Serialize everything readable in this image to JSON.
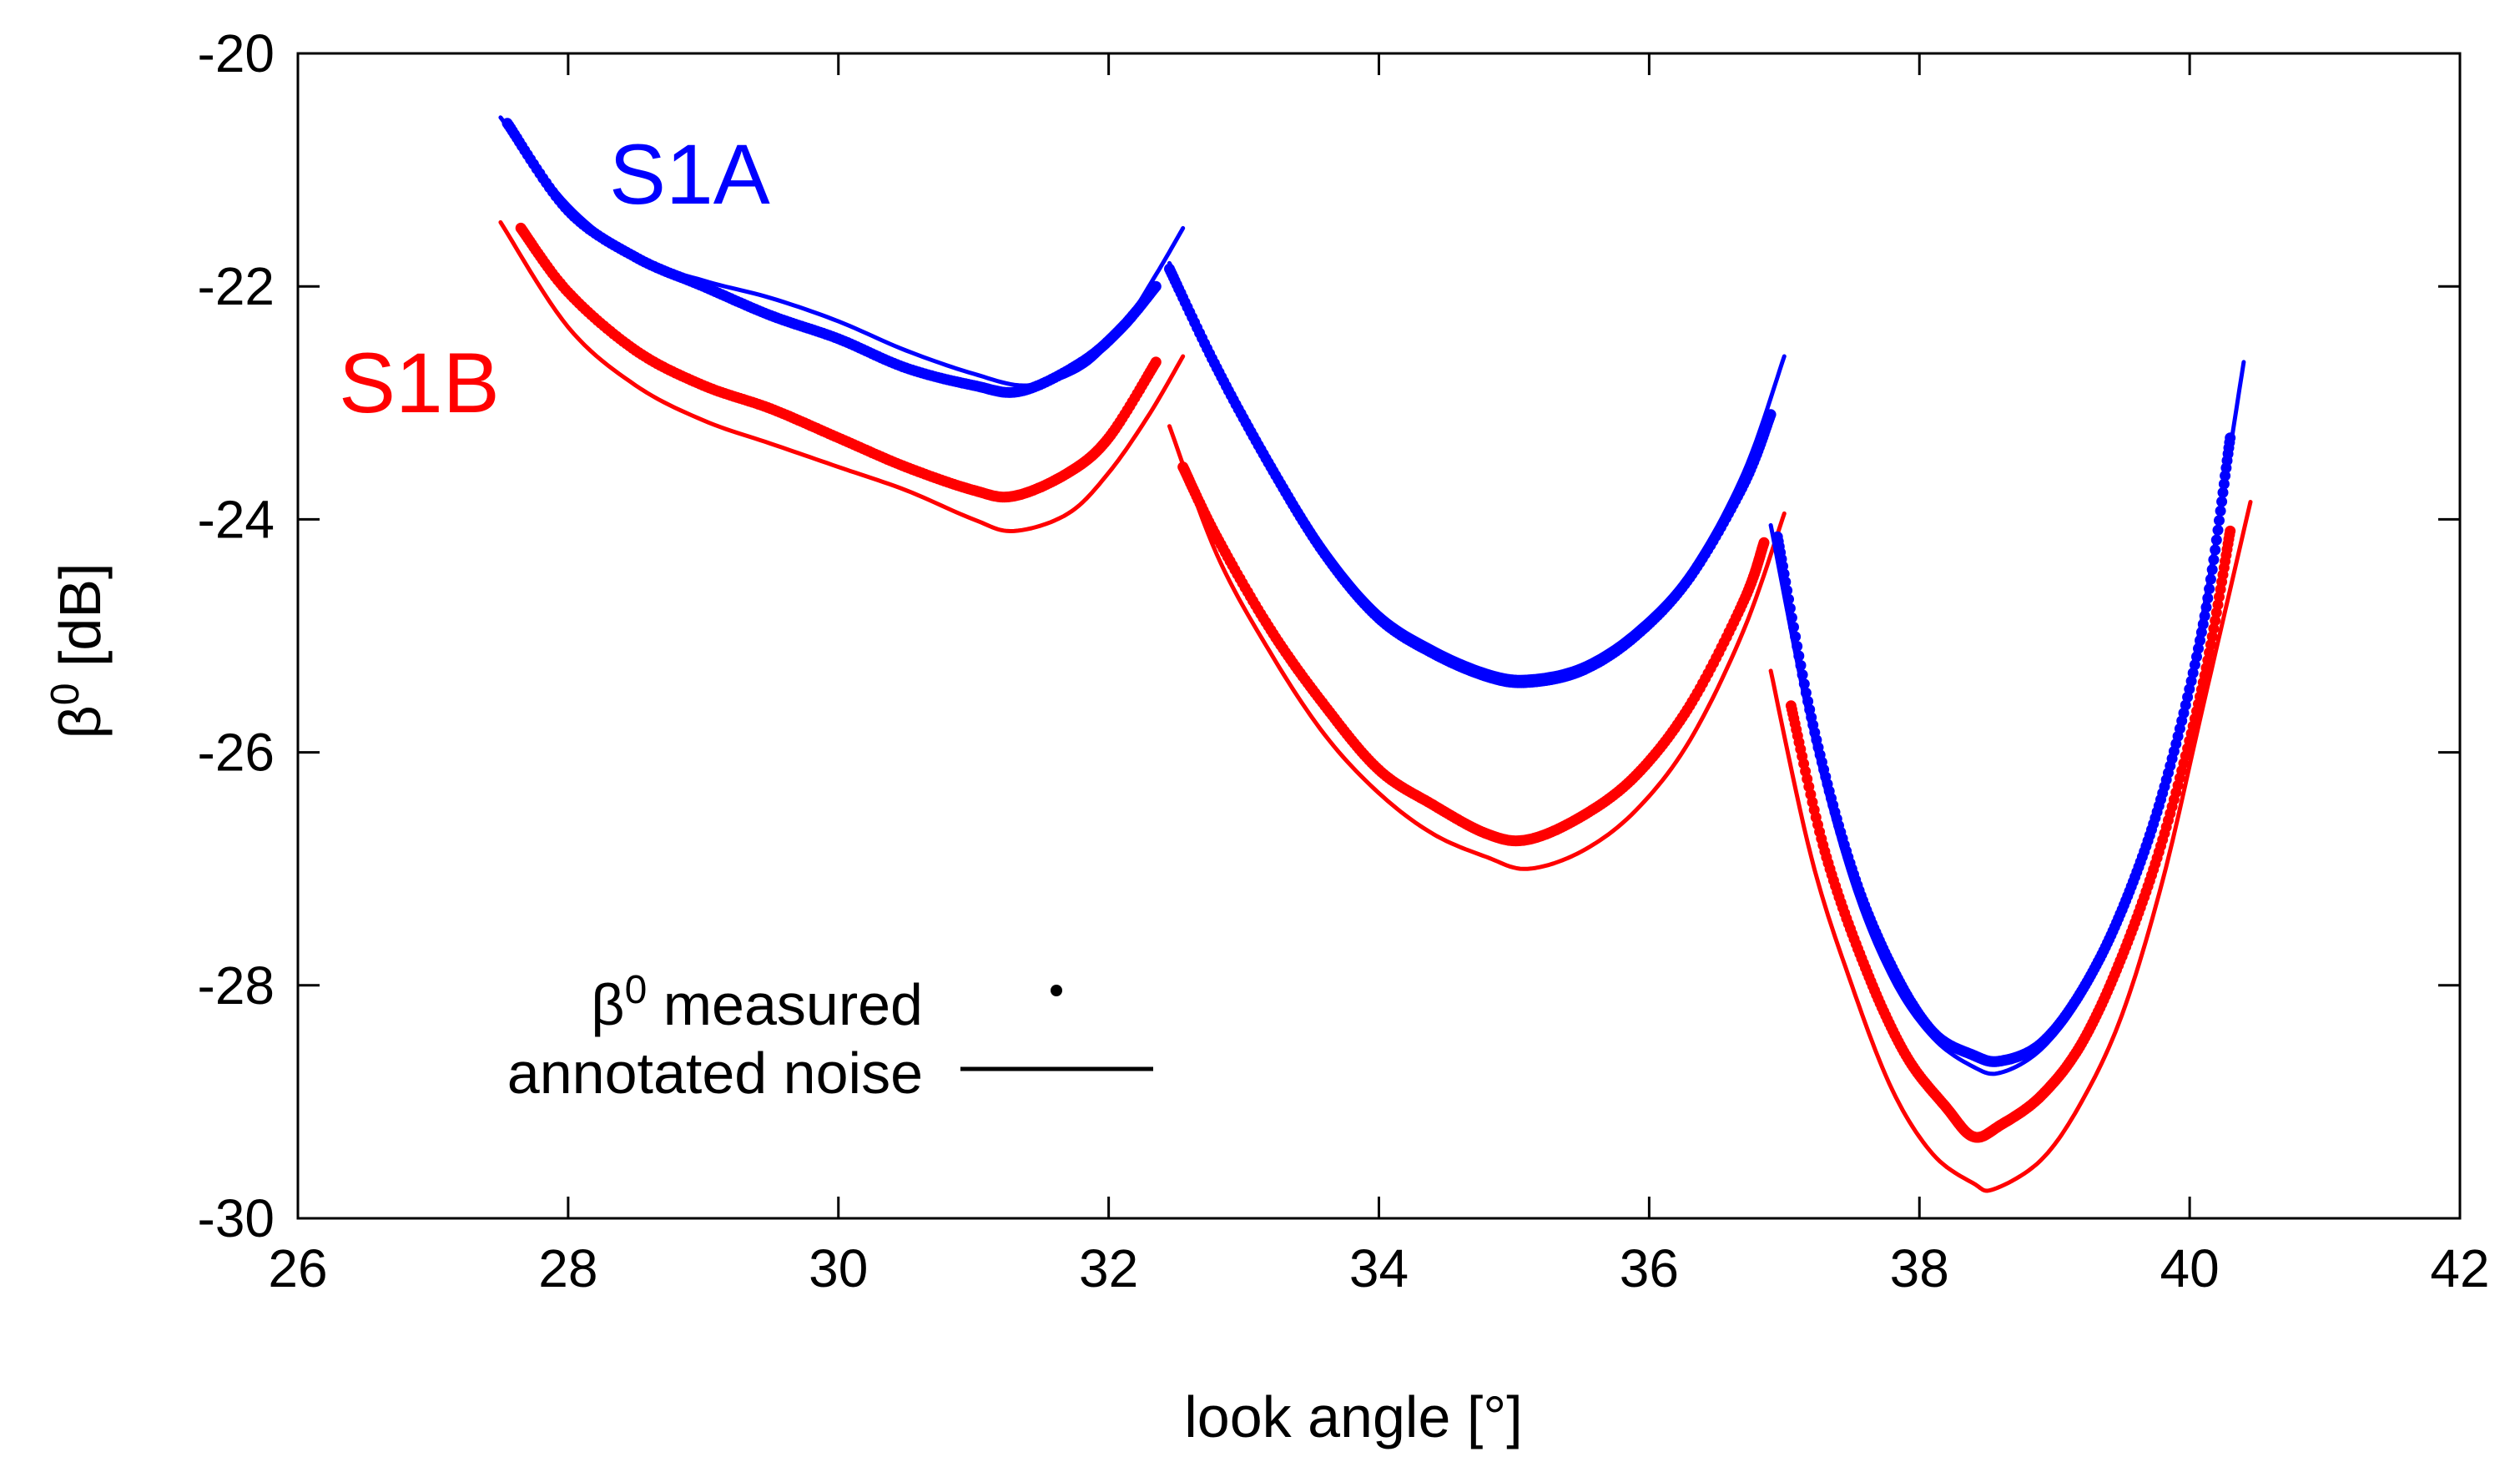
{
  "chart_data": {
    "type": "line",
    "title": "",
    "xlabel": "look angle [°]",
    "ylabel_symbol": "β",
    "ylabel_sup": "0",
    "ylabel_unit": " [dB]",
    "xlim": [
      26,
      42
    ],
    "ylim": [
      -30,
      -20
    ],
    "xticks": [
      26,
      28,
      30,
      32,
      34,
      36,
      38,
      40,
      42
    ],
    "yticks": [
      -20,
      -22,
      -24,
      -26,
      -28,
      -30
    ],
    "grid": false,
    "legend": {
      "placement": "bottom-left",
      "measured_symbol": "β",
      "measured_sup": "0",
      "measured_text": " measured",
      "noise_text": "annotated noise"
    },
    "series": [
      {
        "name": "S1A",
        "color": "#0000ff",
        "subswaths": [
          {
            "noise": [
              [
                27.5,
                -20.55
              ],
              [
                28.0,
                -21.3
              ],
              [
                28.5,
                -21.75
              ],
              [
                29.0,
                -21.95
              ],
              [
                29.5,
                -22.1
              ],
              [
                30.0,
                -22.3
              ],
              [
                30.5,
                -22.55
              ],
              [
                31.0,
                -22.75
              ],
              [
                31.4,
                -22.85
              ],
              [
                31.8,
                -22.7
              ],
              [
                32.1,
                -22.35
              ],
              [
                32.35,
                -21.9
              ],
              [
                32.55,
                -21.5
              ]
            ],
            "measured": [
              [
                27.55,
                -20.6
              ],
              [
                28.0,
                -21.35
              ],
              [
                28.5,
                -21.75
              ],
              [
                29.0,
                -22.0
              ],
              [
                29.5,
                -22.25
              ],
              [
                30.0,
                -22.45
              ],
              [
                30.5,
                -22.7
              ],
              [
                31.0,
                -22.85
              ],
              [
                31.35,
                -22.9
              ],
              [
                31.8,
                -22.65
              ],
              [
                32.1,
                -22.35
              ],
              [
                32.35,
                -22.0
              ]
            ]
          },
          {
            "noise": [
              [
                32.45,
                -21.8
              ],
              [
                32.8,
                -22.65
              ],
              [
                33.2,
                -23.5
              ],
              [
                33.6,
                -24.25
              ],
              [
                34.0,
                -24.8
              ],
              [
                34.4,
                -25.1
              ],
              [
                34.8,
                -25.3
              ],
              [
                35.1,
                -25.35
              ],
              [
                35.5,
                -25.25
              ],
              [
                35.9,
                -24.95
              ],
              [
                36.3,
                -24.45
              ],
              [
                36.7,
                -23.6
              ],
              [
                37.0,
                -22.6
              ]
            ],
            "measured": [
              [
                32.45,
                -21.85
              ],
              [
                32.8,
                -22.7
              ],
              [
                33.2,
                -23.55
              ],
              [
                33.6,
                -24.3
              ],
              [
                34.0,
                -24.85
              ],
              [
                34.4,
                -25.15
              ],
              [
                34.8,
                -25.35
              ],
              [
                35.1,
                -25.4
              ],
              [
                35.5,
                -25.3
              ],
              [
                35.9,
                -25.0
              ],
              [
                36.3,
                -24.5
              ],
              [
                36.7,
                -23.7
              ],
              [
                36.9,
                -23.1
              ]
            ]
          },
          {
            "noise": [
              [
                36.9,
                -24.05
              ],
              [
                37.2,
                -25.8
              ],
              [
                37.5,
                -27.1
              ],
              [
                37.8,
                -27.95
              ],
              [
                38.1,
                -28.45
              ],
              [
                38.4,
                -28.7
              ],
              [
                38.6,
                -28.75
              ],
              [
                38.9,
                -28.55
              ],
              [
                39.2,
                -28.1
              ],
              [
                39.5,
                -27.4
              ],
              [
                39.8,
                -26.4
              ],
              [
                40.1,
                -24.8
              ],
              [
                40.4,
                -22.65
              ]
            ],
            "measured": [
              [
                36.95,
                -24.15
              ],
              [
                37.2,
                -25.7
              ],
              [
                37.5,
                -27.0
              ],
              [
                37.8,
                -27.85
              ],
              [
                38.1,
                -28.4
              ],
              [
                38.4,
                -28.6
              ],
              [
                38.6,
                -28.65
              ],
              [
                38.9,
                -28.5
              ],
              [
                39.2,
                -28.05
              ],
              [
                39.5,
                -27.35
              ],
              [
                39.8,
                -26.35
              ],
              [
                40.1,
                -24.9
              ],
              [
                40.3,
                -23.3
              ]
            ]
          }
        ]
      },
      {
        "name": "S1B",
        "color": "#ff0000",
        "subswaths": [
          {
            "noise": [
              [
                27.5,
                -21.45
              ],
              [
                28.0,
                -22.35
              ],
              [
                28.5,
                -22.85
              ],
              [
                29.0,
                -23.15
              ],
              [
                29.5,
                -23.35
              ],
              [
                30.0,
                -23.55
              ],
              [
                30.5,
                -23.75
              ],
              [
                31.0,
                -24.0
              ],
              [
                31.3,
                -24.1
              ],
              [
                31.7,
                -23.95
              ],
              [
                32.0,
                -23.6
              ],
              [
                32.3,
                -23.1
              ],
              [
                32.55,
                -22.6
              ]
            ],
            "measured": [
              [
                27.65,
                -21.5
              ],
              [
                28.0,
                -22.05
              ],
              [
                28.5,
                -22.55
              ],
              [
                29.0,
                -22.85
              ],
              [
                29.5,
                -23.05
              ],
              [
                30.0,
                -23.3
              ],
              [
                30.5,
                -23.55
              ],
              [
                31.0,
                -23.75
              ],
              [
                31.3,
                -23.8
              ],
              [
                31.7,
                -23.6
              ],
              [
                32.0,
                -23.3
              ],
              [
                32.35,
                -22.65
              ]
            ]
          },
          {
            "noise": [
              [
                32.45,
                -23.2
              ],
              [
                32.8,
                -24.3
              ],
              [
                33.2,
                -25.15
              ],
              [
                33.6,
                -25.85
              ],
              [
                34.0,
                -26.35
              ],
              [
                34.4,
                -26.7
              ],
              [
                34.8,
                -26.9
              ],
              [
                35.1,
                -27.0
              ],
              [
                35.5,
                -26.85
              ],
              [
                35.9,
                -26.5
              ],
              [
                36.3,
                -25.9
              ],
              [
                36.7,
                -24.95
              ],
              [
                37.0,
                -23.95
              ]
            ],
            "measured": [
              [
                32.55,
                -23.55
              ],
              [
                32.8,
                -24.15
              ],
              [
                33.2,
                -24.95
              ],
              [
                33.6,
                -25.6
              ],
              [
                34.0,
                -26.15
              ],
              [
                34.4,
                -26.45
              ],
              [
                34.8,
                -26.7
              ],
              [
                35.1,
                -26.75
              ],
              [
                35.5,
                -26.55
              ],
              [
                35.9,
                -26.2
              ],
              [
                36.3,
                -25.6
              ],
              [
                36.7,
                -24.7
              ],
              [
                36.85,
                -24.2
              ]
            ]
          },
          {
            "noise": [
              [
                36.9,
                -25.3
              ],
              [
                37.2,
                -26.9
              ],
              [
                37.5,
                -28.0
              ],
              [
                37.8,
                -28.9
              ],
              [
                38.1,
                -29.45
              ],
              [
                38.4,
                -29.7
              ],
              [
                38.55,
                -29.75
              ],
              [
                38.9,
                -29.5
              ],
              [
                39.2,
                -29.0
              ],
              [
                39.5,
                -28.25
              ],
              [
                39.8,
                -27.1
              ],
              [
                40.1,
                -25.6
              ],
              [
                40.45,
                -23.85
              ]
            ],
            "measured": [
              [
                37.05,
                -25.6
              ],
              [
                37.3,
                -26.85
              ],
              [
                37.6,
                -27.85
              ],
              [
                37.9,
                -28.6
              ],
              [
                38.2,
                -29.05
              ],
              [
                38.4,
                -29.3
              ],
              [
                38.6,
                -29.2
              ],
              [
                38.9,
                -28.95
              ],
              [
                39.2,
                -28.5
              ],
              [
                39.5,
                -27.75
              ],
              [
                39.8,
                -26.75
              ],
              [
                40.1,
                -25.4
              ],
              [
                40.3,
                -24.1
              ]
            ]
          }
        ]
      }
    ]
  }
}
